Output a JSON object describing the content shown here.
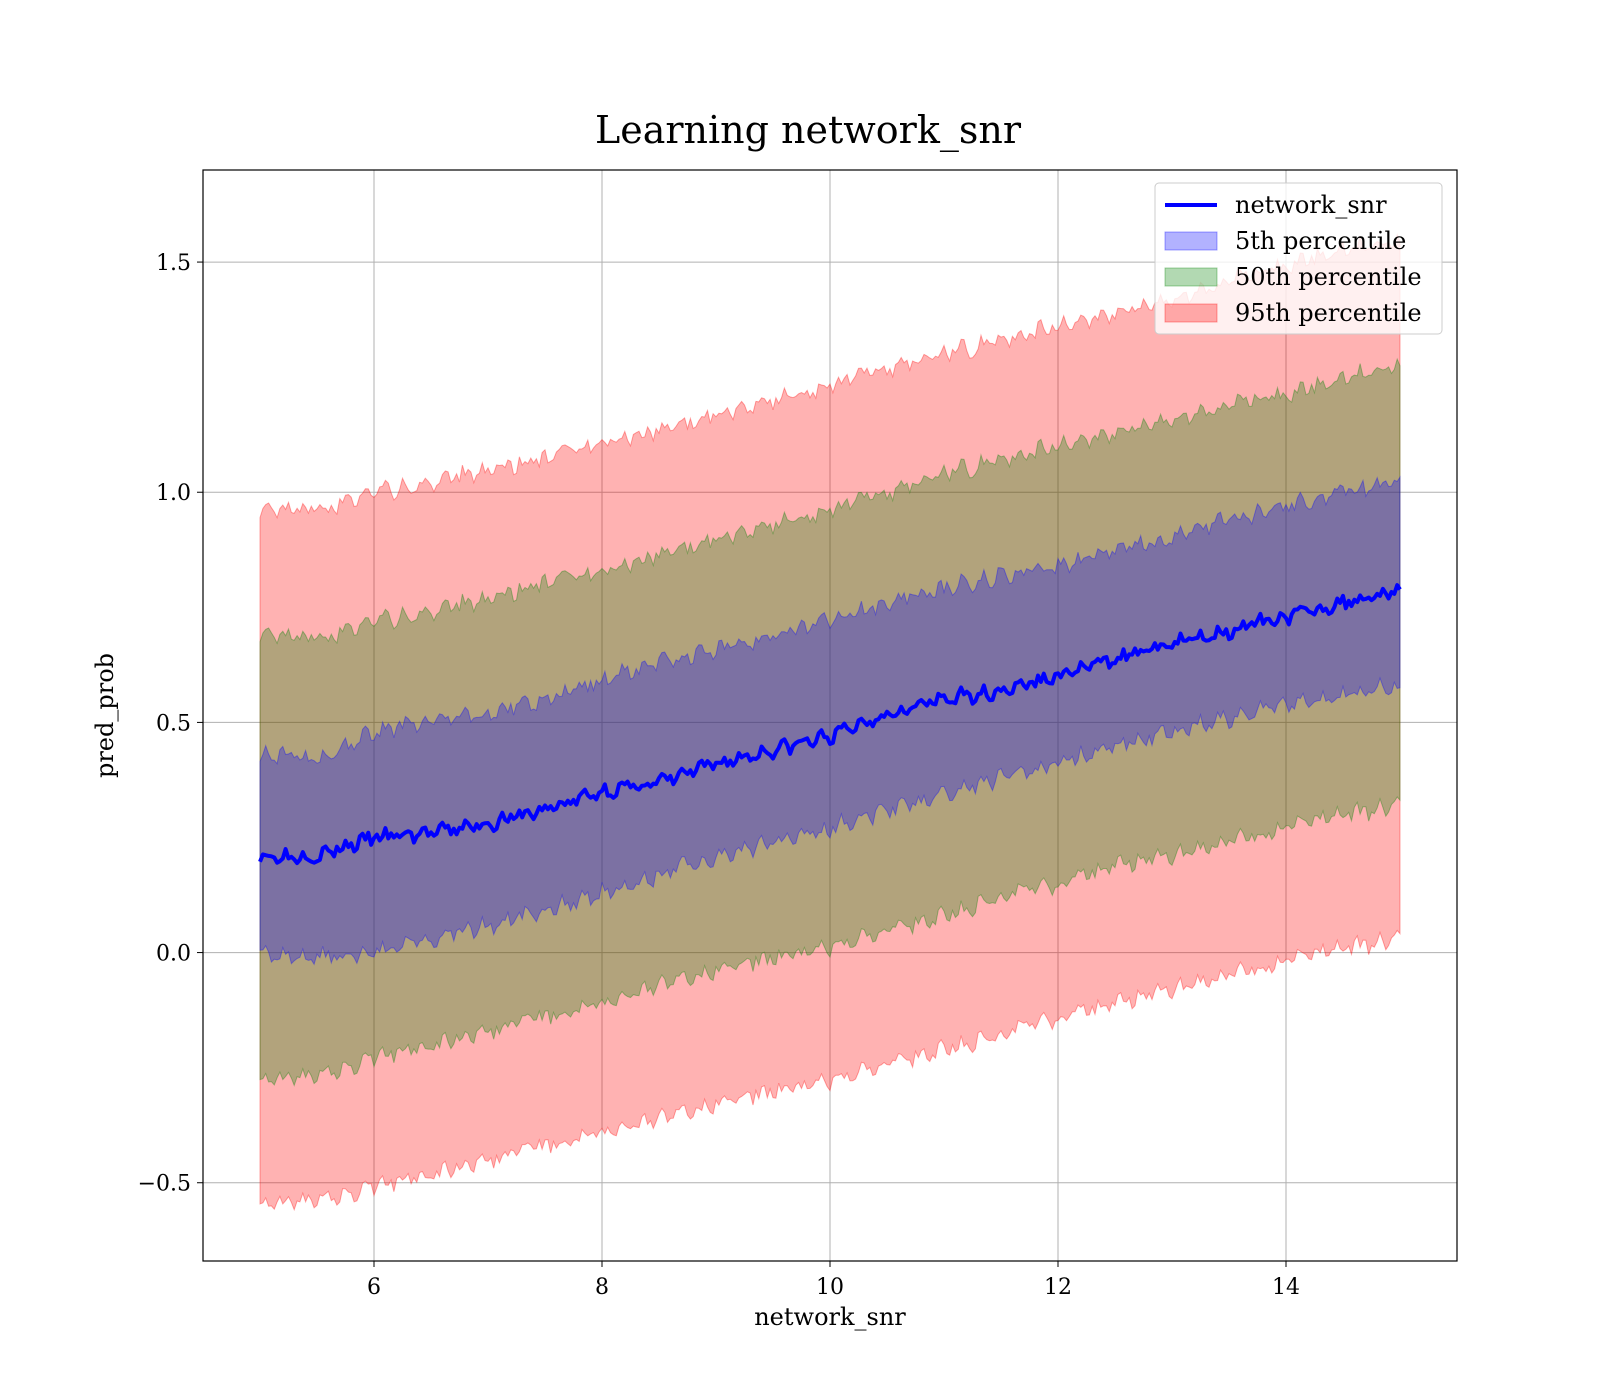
{
  "chart_data": {
    "type": "line",
    "title": "Learning network_snr",
    "xlabel": "network_snr",
    "ylabel": "pred_prob",
    "xlim": [
      4.5,
      15.5
    ],
    "ylim": [
      -0.67,
      1.7
    ],
    "xticks": [
      6,
      8,
      10,
      12,
      14
    ],
    "xtick_labels": [
      "6",
      "8",
      "10",
      "12",
      "14"
    ],
    "yticks": [
      -0.5,
      0.0,
      0.5,
      1.0,
      1.5
    ],
    "ytick_labels": [
      "−0.5",
      "0.0",
      "0.5",
      "1.0",
      "1.5"
    ],
    "grid": true,
    "legend_position": "top-right",
    "x": [
      5,
      5.5,
      6,
      6.5,
      7,
      7.5,
      8,
      8.5,
      9,
      9.5,
      10,
      10.5,
      11,
      11.5,
      12,
      12.5,
      13,
      13.5,
      14,
      14.5,
      15
    ],
    "series": [
      {
        "name": "network_snr",
        "kind": "line",
        "color": "#0000ff",
        "values": [
          0.21,
          0.21,
          0.25,
          0.26,
          0.28,
          0.31,
          0.35,
          0.37,
          0.41,
          0.44,
          0.47,
          0.52,
          0.55,
          0.57,
          0.6,
          0.64,
          0.67,
          0.7,
          0.73,
          0.76,
          0.79
        ]
      },
      {
        "name": "5th percentile",
        "kind": "band",
        "color": "#0000ff",
        "lower": [
          0.0,
          -0.01,
          0.0,
          0.03,
          0.06,
          0.09,
          0.13,
          0.17,
          0.21,
          0.24,
          0.27,
          0.31,
          0.34,
          0.38,
          0.41,
          0.45,
          0.48,
          0.51,
          0.54,
          0.56,
          0.58
        ],
        "upper": [
          0.43,
          0.42,
          0.48,
          0.5,
          0.52,
          0.55,
          0.59,
          0.63,
          0.66,
          0.69,
          0.72,
          0.76,
          0.79,
          0.82,
          0.84,
          0.87,
          0.9,
          0.94,
          0.97,
          1.0,
          1.02
        ]
      },
      {
        "name": "50th percentile",
        "kind": "band",
        "color": "#008000",
        "lower": [
          -0.27,
          -0.27,
          -0.23,
          -0.2,
          -0.17,
          -0.14,
          -0.11,
          -0.07,
          -0.04,
          -0.01,
          0.01,
          0.05,
          0.08,
          0.12,
          0.15,
          0.19,
          0.21,
          0.24,
          0.27,
          0.3,
          0.32
        ],
        "upper": [
          0.69,
          0.68,
          0.72,
          0.74,
          0.77,
          0.8,
          0.83,
          0.86,
          0.9,
          0.93,
          0.96,
          1.0,
          1.04,
          1.07,
          1.1,
          1.13,
          1.16,
          1.19,
          1.21,
          1.25,
          1.28
        ]
      },
      {
        "name": "95th percentile",
        "kind": "band",
        "color": "#ff0000",
        "lower": [
          -0.54,
          -0.54,
          -0.51,
          -0.48,
          -0.45,
          -0.42,
          -0.39,
          -0.36,
          -0.33,
          -0.3,
          -0.28,
          -0.24,
          -0.21,
          -0.18,
          -0.14,
          -0.11,
          -0.08,
          -0.05,
          -0.02,
          0.01,
          0.03
        ],
        "upper": [
          0.96,
          0.96,
          1.0,
          1.02,
          1.05,
          1.07,
          1.11,
          1.13,
          1.17,
          1.2,
          1.23,
          1.27,
          1.3,
          1.33,
          1.36,
          1.39,
          1.42,
          1.46,
          1.49,
          1.53,
          1.55
        ]
      }
    ]
  }
}
